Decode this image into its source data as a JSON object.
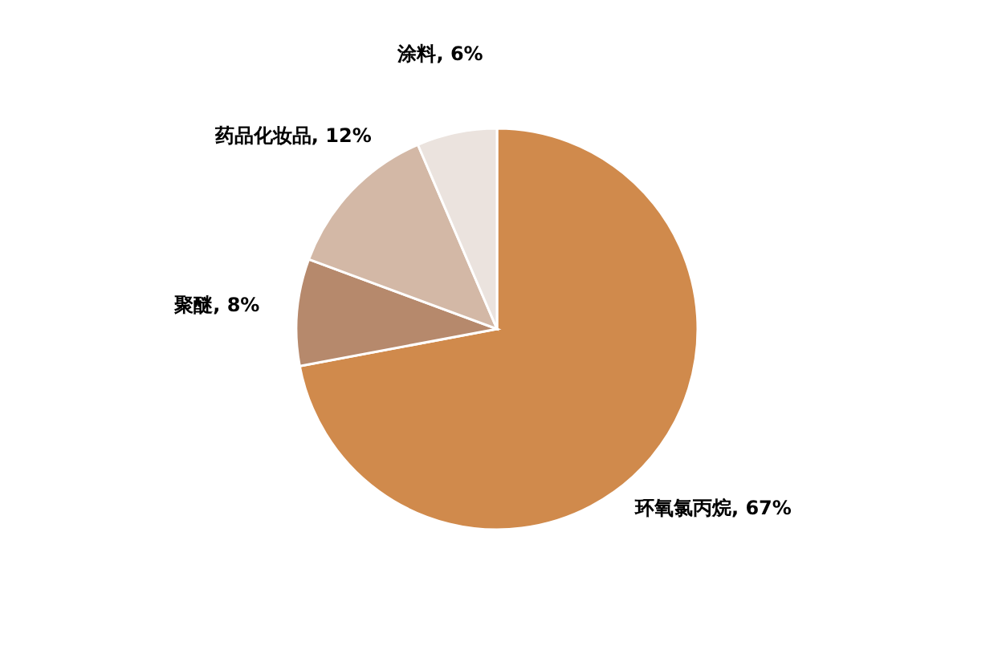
{
  "chart_data": {
    "type": "pie",
    "categories": [
      "环氧氯丙烷",
      "聚醚",
      "药品化妆品",
      "涂料"
    ],
    "values": [
      67,
      8,
      12,
      6
    ],
    "colors": [
      "#d08a4c",
      "#b6896c",
      "#d3b8a6",
      "#ebe3de"
    ],
    "value_labels": [
      "67%",
      "8%",
      "12%",
      "6%"
    ],
    "legend": false
  }
}
